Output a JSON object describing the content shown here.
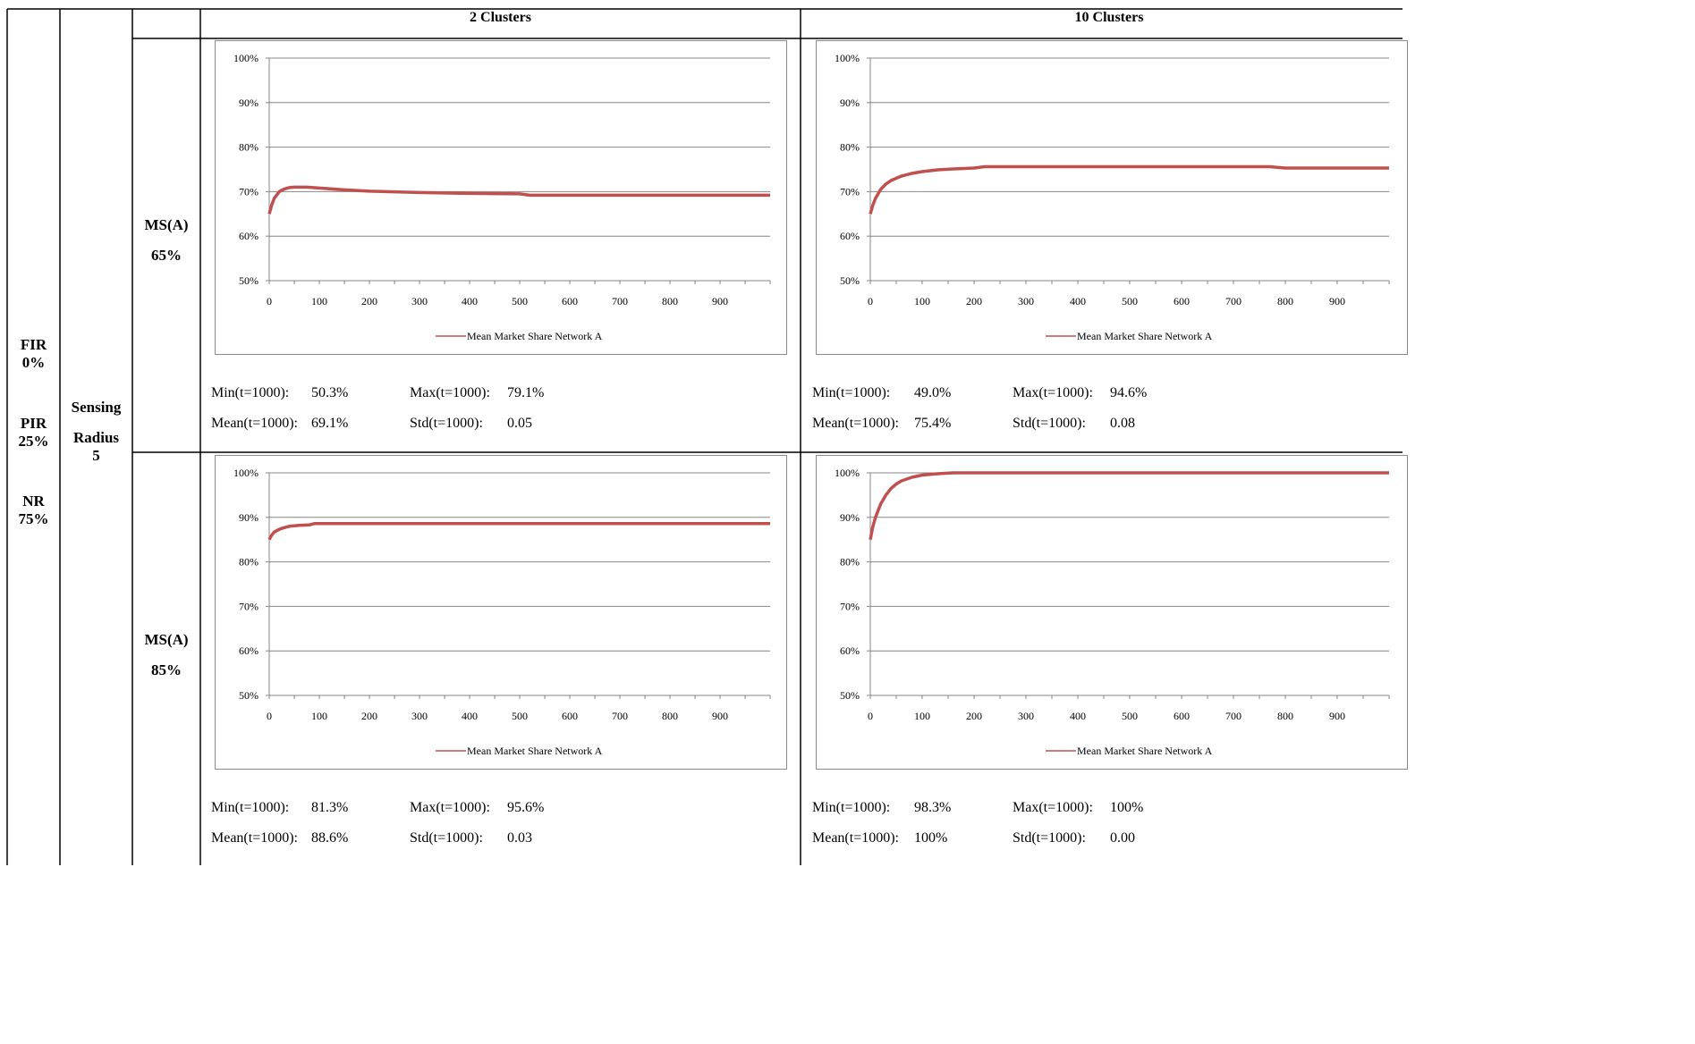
{
  "columns": [
    "2 Clusters",
    "10 Clusters"
  ],
  "params": {
    "fir_label": "FIR",
    "fir_value": "0%",
    "pir_label": "PIR",
    "pir_value": "25%",
    "nr_label": "NR",
    "nr_value": "75%",
    "sensing_l1": "Sensing",
    "sensing_l2": "Radius",
    "sensing_value": "5"
  },
  "rows": [
    {
      "label": "MS(A)",
      "value": "65%"
    },
    {
      "label": "MS(A)",
      "value": "85%"
    }
  ],
  "stats": [
    {
      "min_label": "Min(t=1000):",
      "min": "50.3%",
      "max_label": "Max(t=1000):",
      "max": "79.1%",
      "mean_label": "Mean(t=1000):",
      "mean": "69.1%",
      "std_label": "Std(t=1000):",
      "std": "0.05"
    },
    {
      "min_label": "Min(t=1000):",
      "min": "49.0%",
      "max_label": "Max(t=1000):",
      "max": "94.6%",
      "mean_label": "Mean(t=1000):",
      "mean": "75.4%",
      "std_label": "Std(t=1000):",
      "std": "0.08"
    },
    {
      "min_label": "Min(t=1000):",
      "min": "81.3%",
      "max_label": "Max(t=1000):",
      "max": "95.6%",
      "mean_label": "Mean(t=1000):",
      "mean": "88.6%",
      "std_label": "Std(t=1000):",
      "std": "0.03"
    },
    {
      "min_label": "Min(t=1000):",
      "min": "98.3%",
      "max_label": "Max(t=1000):",
      "max": "100%",
      "mean_label": "Mean(t=1000):",
      "mean": "100%",
      "std_label": "Std(t=1000):",
      "std": "0.00"
    }
  ],
  "chart_data": [
    {
      "type": "line",
      "series_color": "#c0504d",
      "legend": "Mean Market Share Network A",
      "xticks": [
        0,
        100,
        200,
        300,
        400,
        500,
        600,
        700,
        800,
        900
      ],
      "yticks": [
        "50%",
        "60%",
        "70%",
        "80%",
        "90%",
        "100%"
      ],
      "xlim": [
        0,
        1000
      ],
      "ylim": [
        50,
        100
      ],
      "grid": true,
      "legend_position": "bottom",
      "series": [
        {
          "name": "Mean Market Share Network A",
          "x": [
            0,
            5,
            10,
            20,
            30,
            40,
            50,
            75,
            100,
            150,
            200,
            300,
            400,
            500,
            520,
            600,
            700,
            800,
            900,
            1000
          ],
          "y": [
            65,
            67,
            68.5,
            70,
            70.6,
            70.9,
            71,
            71,
            70.8,
            70.4,
            70.1,
            69.8,
            69.6,
            69.5,
            69.2,
            69.2,
            69.2,
            69.2,
            69.2,
            69.2
          ]
        }
      ]
    },
    {
      "type": "line",
      "series_color": "#c0504d",
      "legend": "Mean Market Share Network A",
      "xticks": [
        0,
        100,
        200,
        300,
        400,
        500,
        600,
        700,
        800,
        900
      ],
      "yticks": [
        "50%",
        "60%",
        "70%",
        "80%",
        "90%",
        "100%"
      ],
      "xlim": [
        0,
        1000
      ],
      "ylim": [
        50,
        100
      ],
      "grid": true,
      "legend_position": "bottom",
      "series": [
        {
          "name": "Mean Market Share Network A",
          "x": [
            0,
            5,
            10,
            20,
            30,
            40,
            60,
            80,
            100,
            130,
            160,
            200,
            220,
            300,
            500,
            700,
            770,
            800,
            900,
            1000
          ],
          "y": [
            65,
            67,
            68.5,
            70.5,
            71.7,
            72.5,
            73.5,
            74.1,
            74.5,
            74.9,
            75.1,
            75.3,
            75.6,
            75.6,
            75.6,
            75.6,
            75.6,
            75.3,
            75.3,
            75.3
          ]
        }
      ]
    },
    {
      "type": "line",
      "series_color": "#c0504d",
      "legend": "Mean Market Share Network A",
      "xticks": [
        0,
        100,
        200,
        300,
        400,
        500,
        600,
        700,
        800,
        900
      ],
      "yticks": [
        "50%",
        "60%",
        "70%",
        "80%",
        "90%",
        "100%"
      ],
      "xlim": [
        0,
        1000
      ],
      "ylim": [
        50,
        100
      ],
      "grid": true,
      "legend_position": "bottom",
      "series": [
        {
          "name": "Mean Market Share Network A",
          "x": [
            0,
            5,
            10,
            20,
            30,
            40,
            60,
            80,
            90,
            100,
            200,
            300,
            400,
            500,
            600,
            700,
            800,
            900,
            1000
          ],
          "y": [
            85,
            86,
            86.7,
            87.3,
            87.7,
            88,
            88.2,
            88.3,
            88.6,
            88.6,
            88.6,
            88.6,
            88.6,
            88.6,
            88.6,
            88.6,
            88.6,
            88.6,
            88.6
          ]
        }
      ]
    },
    {
      "type": "line",
      "series_color": "#c0504d",
      "legend": "Mean Market Share Network A",
      "xticks": [
        0,
        100,
        200,
        300,
        400,
        500,
        600,
        700,
        800,
        900
      ],
      "yticks": [
        "50%",
        "60%",
        "70%",
        "80%",
        "90%",
        "100%"
      ],
      "xlim": [
        0,
        1000
      ],
      "ylim": [
        50,
        100
      ],
      "grid": true,
      "legend_position": "bottom",
      "series": [
        {
          "name": "Mean Market Share Network A",
          "x": [
            0,
            5,
            10,
            20,
            30,
            40,
            50,
            60,
            80,
            100,
            130,
            160,
            200,
            300,
            400,
            500,
            600,
            700,
            800,
            900,
            1000
          ],
          "y": [
            85,
            88,
            90,
            93,
            95,
            96.5,
            97.5,
            98.2,
            99,
            99.5,
            99.8,
            100,
            100,
            100,
            100,
            100,
            100,
            100,
            100,
            100,
            100
          ]
        }
      ]
    }
  ]
}
